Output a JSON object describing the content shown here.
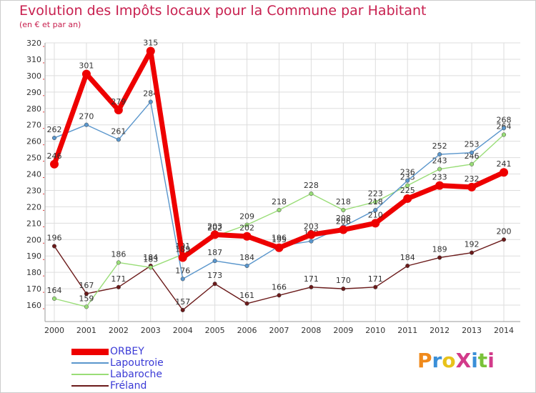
{
  "title": "Evolution des Impôts locaux pour la Commune par Habitant",
  "subtitle": "(en € et par an)",
  "logo": {
    "text": "ProXiti",
    "colors": [
      "#f08a1c",
      "#3a8fd8",
      "#e8c21a",
      "#d23a8a",
      "#3a8fd8",
      "#7ac23a",
      "#d23a8a"
    ]
  },
  "chart_data": {
    "type": "line",
    "title": "Evolution des Impôts locaux pour la Commune par Habitant",
    "ylabel": "(en € et par an)",
    "xlabel": "",
    "ylim": [
      150,
      320
    ],
    "yticks": [
      160,
      170,
      180,
      190,
      200,
      210,
      220,
      230,
      240,
      250,
      260,
      270,
      280,
      290,
      300,
      310,
      320
    ],
    "categories": [
      "2000",
      "2001",
      "2002",
      "2003",
      "2004",
      "2005",
      "2006",
      "2007",
      "2008",
      "2009",
      "2010",
      "2011",
      "2012",
      "2013",
      "2014"
    ],
    "grid": true,
    "series": [
      {
        "name": "Fréland",
        "color": "#6b1a1a",
        "values": [
          196,
          167,
          171,
          184,
          157,
          173,
          161,
          166,
          171,
          170,
          171,
          184,
          189,
          192,
          200
        ]
      },
      {
        "name": "Labaroche",
        "color": "#99dd77",
        "values": [
          164,
          159,
          186,
          183,
          191,
          202,
          209,
          218,
          228,
          218,
          223,
          233,
          243,
          246,
          264
        ]
      },
      {
        "name": "Lapoutroie",
        "color": "#5a96cc",
        "values": [
          262,
          270,
          261,
          284,
          176,
          187,
          184,
          196,
          199,
          208,
          218,
          236,
          252,
          253,
          268
        ]
      },
      {
        "name": "ORBEY",
        "color": "#ee0000",
        "values": [
          246,
          301,
          279,
          315,
          189,
          203,
          202,
          195,
          203,
          206,
          210,
          225,
          233,
          232,
          241
        ]
      }
    ],
    "legend": [
      "ORBEY",
      "Lapoutroie",
      "Labaroche",
      "Fréland"
    ],
    "legend_position": "bottom-left"
  }
}
